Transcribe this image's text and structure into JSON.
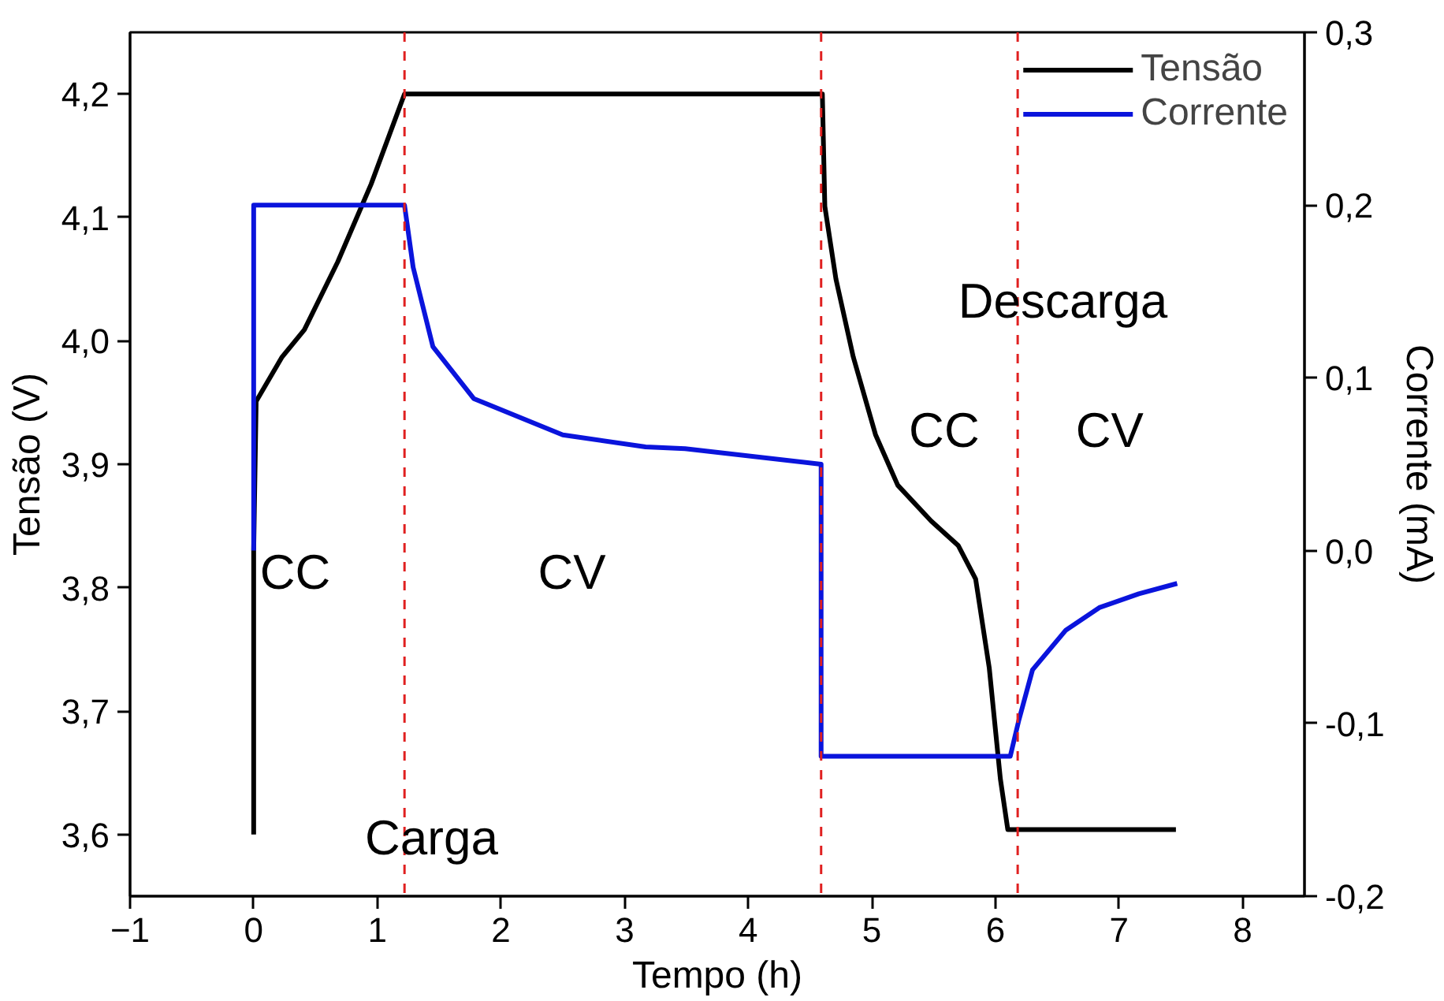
{
  "chart_data": {
    "type": "line",
    "xlabel": "Tempo (h)",
    "ylabel": "Tensão (V)",
    "y2label": "Corrente (mA)",
    "xlim": [
      -1,
      8.5
    ],
    "xticks": [
      -1,
      0,
      1,
      2,
      3,
      4,
      5,
      6,
      7,
      8
    ],
    "ylim": [
      3.55,
      4.25
    ],
    "yticks": [
      {
        "value": 3.6,
        "label": "3,6"
      },
      {
        "value": 3.7,
        "label": "3,7"
      },
      {
        "value": 3.8,
        "label": "3,8"
      },
      {
        "value": 3.9,
        "label": "3,9"
      },
      {
        "value": 4.0,
        "label": "4,0"
      },
      {
        "value": 4.1,
        "label": "4,1"
      },
      {
        "value": 4.2,
        "label": "4,2"
      }
    ],
    "y2lim": [
      -0.2,
      0.3
    ],
    "y2ticks": [
      {
        "value": -0.2,
        "label": "-0,2"
      },
      {
        "value": -0.1,
        "label": "-0,1"
      },
      {
        "value": 0.0,
        "label": "0,0"
      },
      {
        "value": 0.1,
        "label": "0,1"
      },
      {
        "value": 0.2,
        "label": "0,2"
      },
      {
        "value": 0.3,
        "label": "0,3"
      }
    ],
    "series": [
      {
        "name": "Tensão",
        "color": "#000000",
        "x": [
          0,
          0,
          0.02,
          0.23,
          0.41,
          0.68,
          0.95,
          1.22,
          4.6,
          4.62,
          4.71,
          4.85,
          5.03,
          5.21,
          5.48,
          5.7,
          5.84,
          5.95,
          6.04,
          6.1,
          7.46
        ],
        "values": [
          3.6,
          3.83,
          3.951,
          3.987,
          4.009,
          4.064,
          4.127,
          4.2,
          4.2,
          4.109,
          4.05,
          3.987,
          3.924,
          3.883,
          3.854,
          3.834,
          3.807,
          3.735,
          3.645,
          3.604,
          3.604
        ]
      },
      {
        "name": "Corrente",
        "color": "#0a14dc",
        "axis": "y2",
        "x": [
          0,
          0,
          1.22,
          1.29,
          1.45,
          1.78,
          2.5,
          3.17,
          3.49,
          4.59,
          4.59,
          6.12,
          6.19,
          6.3,
          6.57,
          6.84,
          7.16,
          7.47
        ],
        "values": [
          0.0,
          0.2,
          0.2,
          0.164,
          0.118,
          0.088,
          0.067,
          0.06,
          0.059,
          0.05,
          -0.119,
          -0.119,
          -0.098,
          -0.069,
          -0.046,
          -0.033,
          -0.025,
          -0.019
        ]
      }
    ],
    "ref_lines": [
      {
        "axis": "x",
        "value": 1.22,
        "color": "#e02020",
        "line_style": "dashed"
      },
      {
        "axis": "x",
        "value": 4.59,
        "color": "#e02020",
        "line_style": "dashed"
      },
      {
        "axis": "x",
        "value": 6.18,
        "color": "#e02020",
        "line_style": "dashed"
      }
    ],
    "annotations": [
      "CC",
      "CV",
      "Carga",
      "Descarga",
      "CC",
      "CV"
    ],
    "legend": "top right",
    "grid": false,
    "line_style": "solid",
    "marker": "none"
  }
}
